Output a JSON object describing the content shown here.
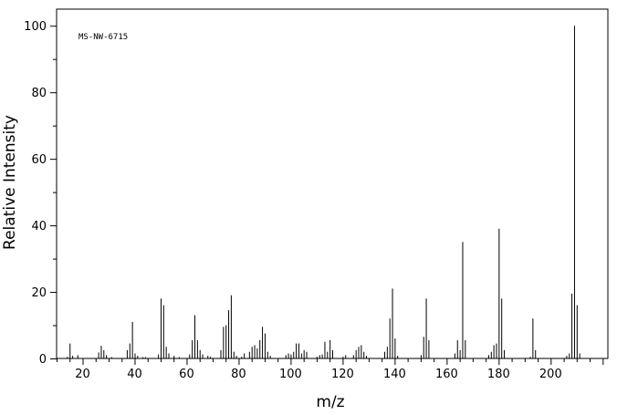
{
  "chart_data": {
    "type": "bar",
    "annotation": "MS-NW-6715",
    "xlabel": "m/z",
    "ylabel": "Relative Intensity",
    "xlim": [
      10,
      222
    ],
    "ylim": [
      0,
      105
    ],
    "x_ticks": [
      20,
      40,
      60,
      80,
      100,
      120,
      140,
      160,
      180,
      200
    ],
    "y_ticks": [
      0,
      20,
      40,
      60,
      80,
      100
    ],
    "grid": false,
    "x": [
      14,
      15,
      16,
      18,
      26,
      27,
      28,
      29,
      31,
      37,
      38,
      39,
      40,
      41,
      43,
      44,
      49,
      50,
      51,
      52,
      53,
      55,
      57,
      61,
      62,
      63,
      64,
      65,
      66,
      68,
      69,
      73,
      74,
      75,
      76,
      77,
      78,
      79,
      81,
      82,
      84,
      85,
      86,
      87,
      88,
      89,
      90,
      91,
      92,
      98,
      99,
      100,
      101,
      102,
      103,
      104,
      105,
      106,
      110,
      111,
      112,
      113,
      114,
      115,
      116,
      120,
      121,
      124,
      125,
      126,
      127,
      128,
      129,
      136,
      137,
      138,
      139,
      140,
      141,
      150,
      151,
      152,
      153,
      163,
      164,
      165,
      166,
      167,
      176,
      177,
      178,
      179,
      180,
      181,
      182,
      192,
      193,
      194,
      206,
      207,
      208,
      209,
      210,
      211
    ],
    "values": [
      0.5,
      4.5,
      0.8,
      1.0,
      1.8,
      3.8,
      2.5,
      1.0,
      0.4,
      2.5,
      4.5,
      11.0,
      1.5,
      0.8,
      0.4,
      0.4,
      1.2,
      18.0,
      16.0,
      3.5,
      1.5,
      0.8,
      0.4,
      1.2,
      5.5,
      13.0,
      5.5,
      2.5,
      1.2,
      0.8,
      0.5,
      2.5,
      9.5,
      10.0,
      14.5,
      19.0,
      2.0,
      0.8,
      0.5,
      1.5,
      2.0,
      3.5,
      4.0,
      3.0,
      5.5,
      9.5,
      7.5,
      2.0,
      0.8,
      1.0,
      1.5,
      1.2,
      2.0,
      4.5,
      4.5,
      1.5,
      2.5,
      2.0,
      0.5,
      1.0,
      1.2,
      5.0,
      2.0,
      5.5,
      2.5,
      0.5,
      1.0,
      1.0,
      2.5,
      3.5,
      4.0,
      2.0,
      0.8,
      2.0,
      3.5,
      12.0,
      21.0,
      6.0,
      0.8,
      1.0,
      6.5,
      18.0,
      5.5,
      1.5,
      5.5,
      2.5,
      35.0,
      5.5,
      1.0,
      2.0,
      4.0,
      4.5,
      39.0,
      18.0,
      2.5,
      0.5,
      12.0,
      2.5,
      0.8,
      1.5,
      19.5,
      100.0,
      16.0,
      1.5
    ]
  }
}
